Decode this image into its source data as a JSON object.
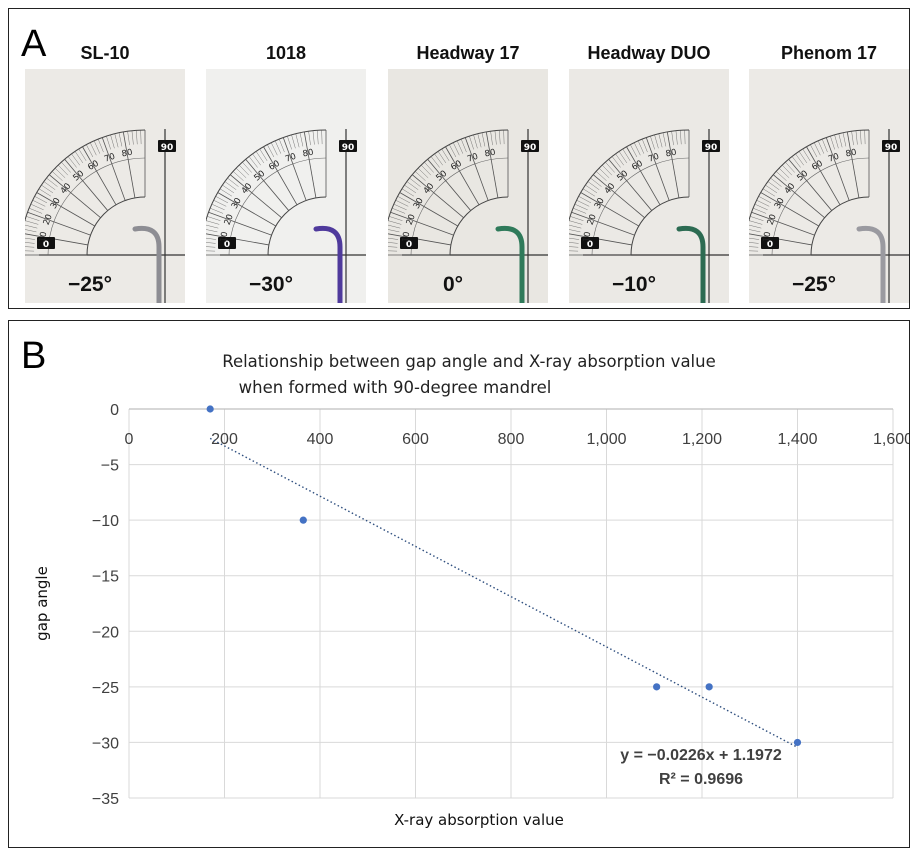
{
  "panel_a": {
    "letter": "A",
    "photos": [
      {
        "title": "SL-10",
        "gap_angle": "−25°",
        "wire_color": "#8d8d93",
        "background": "#eceae6"
      },
      {
        "title": "1018",
        "gap_angle": "−30°",
        "wire_color": "#4f3a9c",
        "background": "#f0f0ee"
      },
      {
        "title": "Headway 17",
        "gap_angle": "0°",
        "wire_color": "#2f7a5a",
        "background": "#e9e7e2"
      },
      {
        "title": "Headway DUO",
        "gap_angle": "−10°",
        "wire_color": "#2c6b52",
        "background": "#ebe9e5"
      },
      {
        "title": "Phenom 17",
        "gap_angle": "−25°",
        "wire_color": "#9a9aa0",
        "background": "#eceae6"
      }
    ],
    "protractor_labels": [
      "0",
      "10",
      "20",
      "30",
      "40",
      "50",
      "60",
      "70",
      "80",
      "90"
    ]
  },
  "panel_b": {
    "letter": "B"
  },
  "chart_data": {
    "type": "scatter",
    "title_line1": "Relationship between gap angle and X-ray absorption value",
    "title_line2": "when formed with 90-degree mandrel",
    "xlabel": "X-ray absorption value",
    "ylabel": "gap angle",
    "xlim": [
      0,
      1600
    ],
    "ylim": [
      -35,
      0
    ],
    "x_ticks": [
      0,
      200,
      400,
      600,
      800,
      1000,
      1200,
      1400,
      1600
    ],
    "x_tick_labels": [
      "0",
      "200",
      "400",
      "600",
      "800",
      "1,000",
      "1,200",
      "1,400",
      "1,600"
    ],
    "y_ticks": [
      0,
      -5,
      -10,
      -15,
      -20,
      -25,
      -30,
      -35
    ],
    "y_tick_labels": [
      "0",
      "−5",
      "−10",
      "−15",
      "−20",
      "−25",
      "−30",
      "−35"
    ],
    "x_axis_position": "top",
    "grid": true,
    "points": [
      {
        "x": 170,
        "y": 0
      },
      {
        "x": 365,
        "y": -10
      },
      {
        "x": 1105,
        "y": -25
      },
      {
        "x": 1215,
        "y": -25
      },
      {
        "x": 1400,
        "y": -30
      }
    ],
    "point_color": "#4472c4",
    "trendline": {
      "slope": -0.0226,
      "intercept": 1.1972,
      "x_range": [
        170,
        1400
      ],
      "style": "dotted",
      "color": "#2f4f7f",
      "equation": "y = −0.0226x + 1.1972",
      "r_squared": "R² = 0.9696"
    }
  }
}
